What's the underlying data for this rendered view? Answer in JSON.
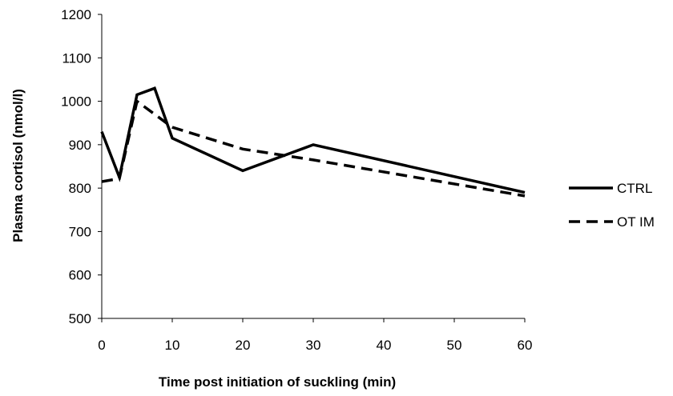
{
  "chart_data": {
    "type": "line",
    "title": "",
    "xlabel": "Time post initiation of suckling (min)",
    "ylabel": "Plasma cortisol (nmol/l)",
    "xlim": [
      0,
      60
    ],
    "ylim": [
      500,
      1200
    ],
    "x_ticks": [
      0,
      10,
      20,
      30,
      40,
      50,
      60
    ],
    "y_ticks": [
      500,
      600,
      700,
      800,
      900,
      1000,
      1100,
      1200
    ],
    "x_tick_labels": [
      "0",
      "10",
      "20",
      "30",
      "40",
      "50",
      "60"
    ],
    "y_tick_labels": [
      "500",
      "600",
      "700",
      "800",
      "900",
      "1000",
      "1100",
      "1200"
    ],
    "grid": false,
    "legend_position": "right",
    "series": [
      {
        "name": "CTRL",
        "style": "solid",
        "color": "#000000",
        "x": [
          0,
          2.5,
          5,
          7.5,
          10,
          20,
          30,
          60
        ],
        "y": [
          930,
          825,
          1015,
          1030,
          915,
          840,
          900,
          790
        ]
      },
      {
        "name": "OT IM",
        "style": "dashed",
        "color": "#000000",
        "x": [
          0,
          2.5,
          5,
          10,
          20,
          30,
          60
        ],
        "y": [
          815,
          822,
          1000,
          940,
          890,
          865,
          782
        ]
      }
    ]
  }
}
